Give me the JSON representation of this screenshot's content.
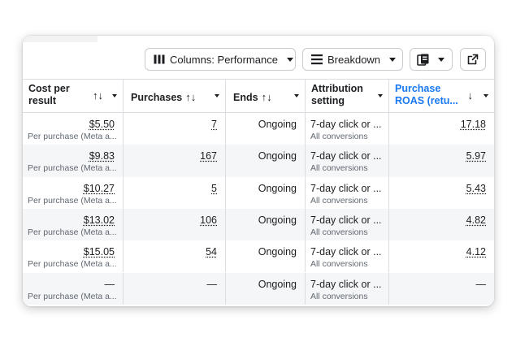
{
  "toolbar": {
    "columns_label": "Columns: Performance",
    "breakdown_label": "Breakdown",
    "reports_icon": "reports-icon",
    "export_icon": "export-icon"
  },
  "headers": {
    "cost_per_result": "Cost per result",
    "purchases": "Purchases",
    "ends": "Ends",
    "attribution": "Attribution setting",
    "roas_line1": "Purchase",
    "roas_line2": "ROAS (retu...",
    "sort_both": "↑↓",
    "sort_down": "↓"
  },
  "colors": {
    "accent": "#1877f2",
    "alt_row": "#f5f6f7"
  },
  "rows": [
    {
      "cost": "$5.50",
      "cost_sub": "Per purchase (Meta a...",
      "purchases": "7",
      "ends": "Ongoing",
      "attribution": "7-day click or ...",
      "attribution_sub": "All conversions",
      "roas": "17.18"
    },
    {
      "cost": "$9.83",
      "cost_sub": "Per purchase (Meta a...",
      "purchases": "167",
      "ends": "Ongoing",
      "attribution": "7-day click or ...",
      "attribution_sub": "All conversions",
      "roas": "5.97"
    },
    {
      "cost": "$10.27",
      "cost_sub": "Per purchase (Meta a...",
      "purchases": "5",
      "ends": "Ongoing",
      "attribution": "7-day click or ...",
      "attribution_sub": "All conversions",
      "roas": "5.43"
    },
    {
      "cost": "$13.02",
      "cost_sub": "Per purchase (Meta a...",
      "purchases": "106",
      "ends": "Ongoing",
      "attribution": "7-day click or ...",
      "attribution_sub": "All conversions",
      "roas": "4.82"
    },
    {
      "cost": "$15.05",
      "cost_sub": "Per purchase (Meta a...",
      "purchases": "54",
      "ends": "Ongoing",
      "attribution": "7-day click or ...",
      "attribution_sub": "All conversions",
      "roas": "4.12"
    },
    {
      "cost": "—",
      "cost_sub": "Per purchase (Meta a...",
      "purchases": "—",
      "ends": "Ongoing",
      "attribution": "7-day click or ...",
      "attribution_sub": "All conversions",
      "roas": "—"
    }
  ]
}
